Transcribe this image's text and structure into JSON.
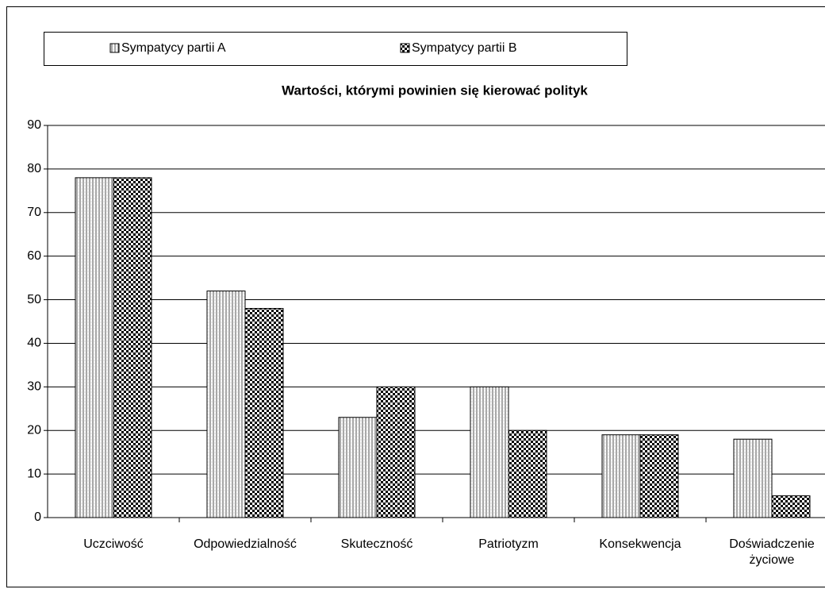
{
  "chart_data": {
    "type": "bar",
    "title": "Wartości, którymi powinien się kierować polityk",
    "categories": [
      "Uczciwość",
      "Odpowiedzialność",
      "Skuteczność",
      "Patriotyzm",
      "Konsekwencja",
      "Doświadczenie życiowe"
    ],
    "series": [
      {
        "name": "Sympatycy partii A",
        "color": "#000000",
        "values": [
          78,
          52,
          23,
          30,
          19,
          18
        ]
      },
      {
        "name": "Sympatycy partii B",
        "color": "#000000",
        "values": [
          78,
          48,
          30,
          20,
          19,
          5
        ]
      }
    ],
    "ylim": [
      0,
      90
    ],
    "yticks": [
      0,
      10,
      20,
      30,
      40,
      50,
      60,
      70,
      80,
      90
    ],
    "grid": true,
    "legend": "top"
  }
}
